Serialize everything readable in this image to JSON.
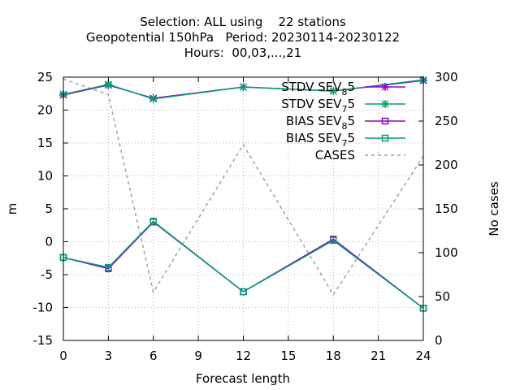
{
  "chart_data": {
    "type": "line",
    "title_lines": [
      "Selection: ALL using    22 stations",
      "Geopotential 150hPa   Period: 20230114-20230122",
      "Hours:  00,03,...,21"
    ],
    "xlabel": "Forecast length",
    "ylabel": "m",
    "y2label": "No cases",
    "xlim": [
      0,
      24
    ],
    "ylim": [
      -15,
      25
    ],
    "y2lim": [
      0,
      300
    ],
    "xticks": [
      0,
      3,
      6,
      9,
      12,
      15,
      18,
      21,
      24
    ],
    "yticks": [
      -15,
      -10,
      -5,
      0,
      5,
      10,
      15,
      20,
      25
    ],
    "y2ticks": [
      0,
      50,
      100,
      150,
      200,
      250,
      300
    ],
    "grid": true,
    "legend_position": "top-right",
    "x": [
      0,
      3,
      6,
      12,
      18,
      24
    ],
    "series": [
      {
        "name": "STDV SEV_8 5",
        "label_base": "STDV SEV",
        "label_sub": "8",
        "label_tail": "5",
        "color": "#9400d3",
        "marker": "star",
        "axis": "y1",
        "values": [
          22.3,
          23.8,
          21.8,
          23.5,
          22.9,
          24.5
        ]
      },
      {
        "name": "STDV SEV_7 5",
        "label_base": "STDV SEV",
        "label_sub": "7",
        "label_tail": "5",
        "color": "#009e73",
        "marker": "star",
        "axis": "y1",
        "values": [
          22.4,
          23.9,
          21.7,
          23.5,
          22.9,
          24.6
        ]
      },
      {
        "name": "BIAS SEV_8 5",
        "label_base": "BIAS SEV",
        "label_sub": "8",
        "label_tail": "5",
        "color": "#9400d3",
        "marker": "square",
        "axis": "y1",
        "values": [
          -2.4,
          -4.1,
          3.0,
          -7.6,
          0.4,
          -10.1
        ]
      },
      {
        "name": "BIAS SEV_7 5",
        "label_base": "BIAS SEV",
        "label_sub": "7",
        "label_tail": "5",
        "color": "#009e73",
        "marker": "square",
        "axis": "y1",
        "values": [
          -2.4,
          -3.9,
          3.1,
          -7.6,
          0.2,
          -10.1
        ]
      },
      {
        "name": "CASES",
        "label_base": "CASES",
        "label_sub": "",
        "label_tail": "",
        "color": "#a0a0a0",
        "marker": "none",
        "dashed": true,
        "axis": "y2",
        "values": [
          298,
          280,
          55,
          223,
          52,
          210
        ]
      }
    ]
  }
}
